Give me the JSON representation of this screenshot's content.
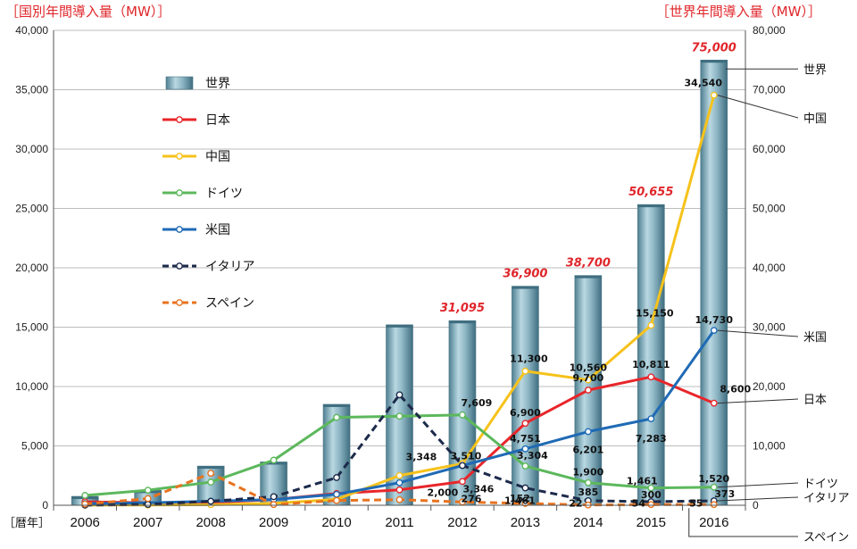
{
  "left_axis_title": "［国別年間導入量（MW）］",
  "right_axis_title": "［世界年間導入量（MW）］",
  "x_axis_unit_label": "［暦年］",
  "chart_data": {
    "type": "bar+line",
    "categories": [
      "2006",
      "2007",
      "2008",
      "2009",
      "2010",
      "2011",
      "2012",
      "2013",
      "2014",
      "2015",
      "2016"
    ],
    "left_axis": {
      "min": 0,
      "max": 40000,
      "step": 5000,
      "tick_labels": [
        "0",
        "5,000",
        "10,000",
        "15,000",
        "20,000",
        "25,000",
        "30,000",
        "35,000",
        "40,000"
      ]
    },
    "right_axis": {
      "min": 0,
      "max": 80000,
      "step": 10000,
      "tick_labels": [
        "0",
        "10,000",
        "20,000",
        "30,000",
        "40,000",
        "50,000",
        "60,000",
        "70,000",
        "80,000"
      ]
    },
    "grid": true,
    "legend_position": "top-left",
    "world": {
      "name": "世界",
      "axis": "right",
      "color": "#7fa9b8",
      "values": [
        1500,
        2500,
        6600,
        7300,
        17000,
        30400,
        31095,
        36900,
        38700,
        50655,
        75000
      ],
      "labels": [
        "",
        "",
        "",
        "",
        "",
        "",
        "31,095",
        "36,900",
        "38,700",
        "50,655",
        "75,000"
      ]
    },
    "series": [
      {
        "name": "日本",
        "color": "#e8262a",
        "dashed": false,
        "values": [
          290,
          210,
          230,
          480,
          990,
          1296,
          2000,
          6900,
          9700,
          10811,
          8600
        ],
        "labels": [
          "",
          "",
          "",
          "",
          "",
          "",
          "2,000",
          "6,900",
          "9,700",
          "10,811",
          "8,600"
        ],
        "callout": "日本"
      },
      {
        "name": "中国",
        "color": "#f6c21b",
        "dashed": false,
        "values": [
          10,
          20,
          45,
          160,
          500,
          2500,
          3510,
          11300,
          10560,
          15150,
          34540
        ],
        "labels": [
          "",
          "",
          "",
          "",
          "",
          "",
          "3,510",
          "11,300",
          "10,560",
          "15,150",
          "34,540"
        ],
        "callout": "中国"
      },
      {
        "name": "ドイツ",
        "color": "#5cb85c",
        "dashed": false,
        "values": [
          830,
          1270,
          1950,
          3800,
          7400,
          7500,
          7609,
          3304,
          1900,
          1461,
          1520
        ],
        "labels": [
          "",
          "",
          "",
          "",
          "",
          "",
          "7,609",
          "3,304",
          "1,900",
          "1,461",
          "1,520"
        ],
        "callout": "ドイツ"
      },
      {
        "name": "米国",
        "color": "#1f6ab5",
        "dashed": false,
        "values": [
          140,
          210,
          340,
          480,
          920,
          1900,
          3346,
          4751,
          6201,
          7283,
          14730
        ],
        "labels": [
          "",
          "",
          "",
          "",
          "",
          "",
          "3,346",
          "4,751",
          "6,201",
          "7,283",
          "14,730"
        ],
        "callout": "米国"
      },
      {
        "name": "イタリア",
        "color": "#1c2a4a",
        "dashed": true,
        "values": [
          10,
          70,
          340,
          720,
          2330,
          9300,
          3348,
          1461,
          385,
          300,
          373
        ],
        "labels": [
          "",
          "",
          "",
          "",
          "",
          "",
          "3,348",
          "1,461",
          "385",
          "300",
          "373"
        ],
        "callout": "イタリア"
      },
      {
        "name": "スペイン",
        "color": "#e8731f",
        "dashed": true,
        "values": [
          100,
          560,
          2700,
          60,
          400,
          470,
          276,
          152,
          22,
          54,
          55
        ],
        "labels": [
          "",
          "",
          "",
          "",
          "",
          "",
          "276",
          "152",
          "22",
          "54",
          "55"
        ],
        "callout": "スペイン"
      }
    ],
    "world_callout": "世界"
  }
}
